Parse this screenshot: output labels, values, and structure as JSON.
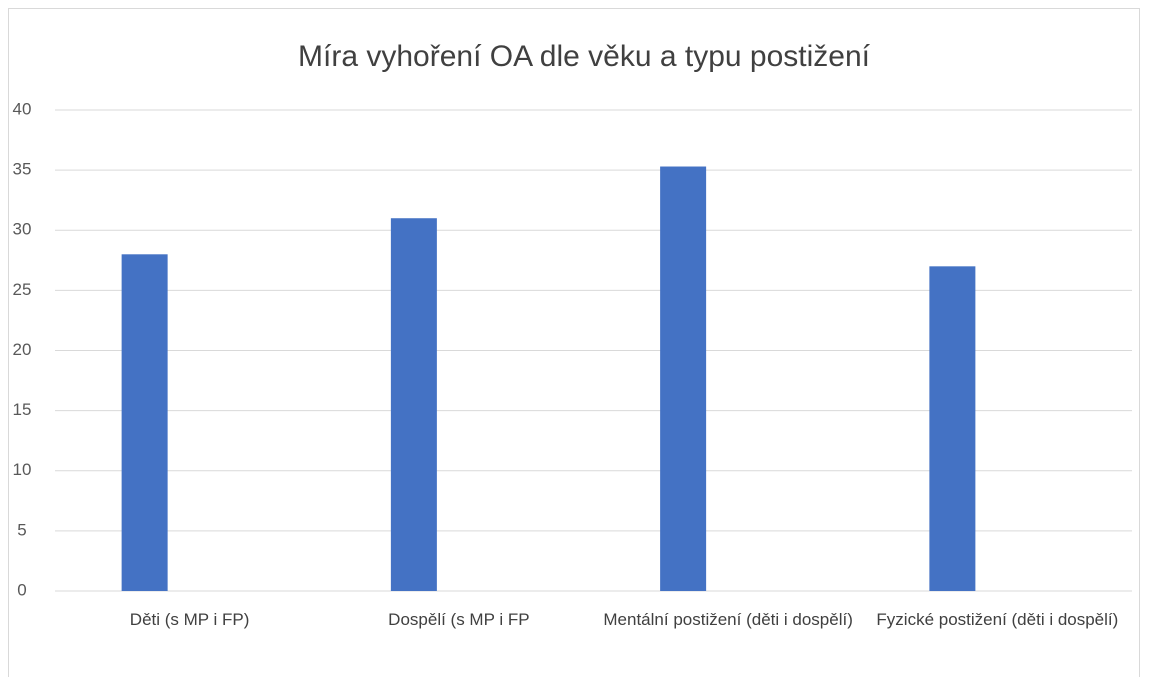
{
  "chart_data": {
    "type": "bar",
    "title": "Míra vyhoření OA dle věku a typu postižení",
    "categories": [
      "Děti (s MP i FP)",
      "Dospělí (s MP i FP",
      "Mentální postižení (děti i dospělí)",
      "Fyzické postižení (děti i dospělí)"
    ],
    "values": [
      28,
      31,
      35.3,
      27
    ],
    "color": "#4472c4",
    "ylim": [
      0,
      40
    ],
    "yticks": [
      0,
      5,
      10,
      15,
      20,
      25,
      30,
      35,
      40
    ],
    "grid": true
  }
}
